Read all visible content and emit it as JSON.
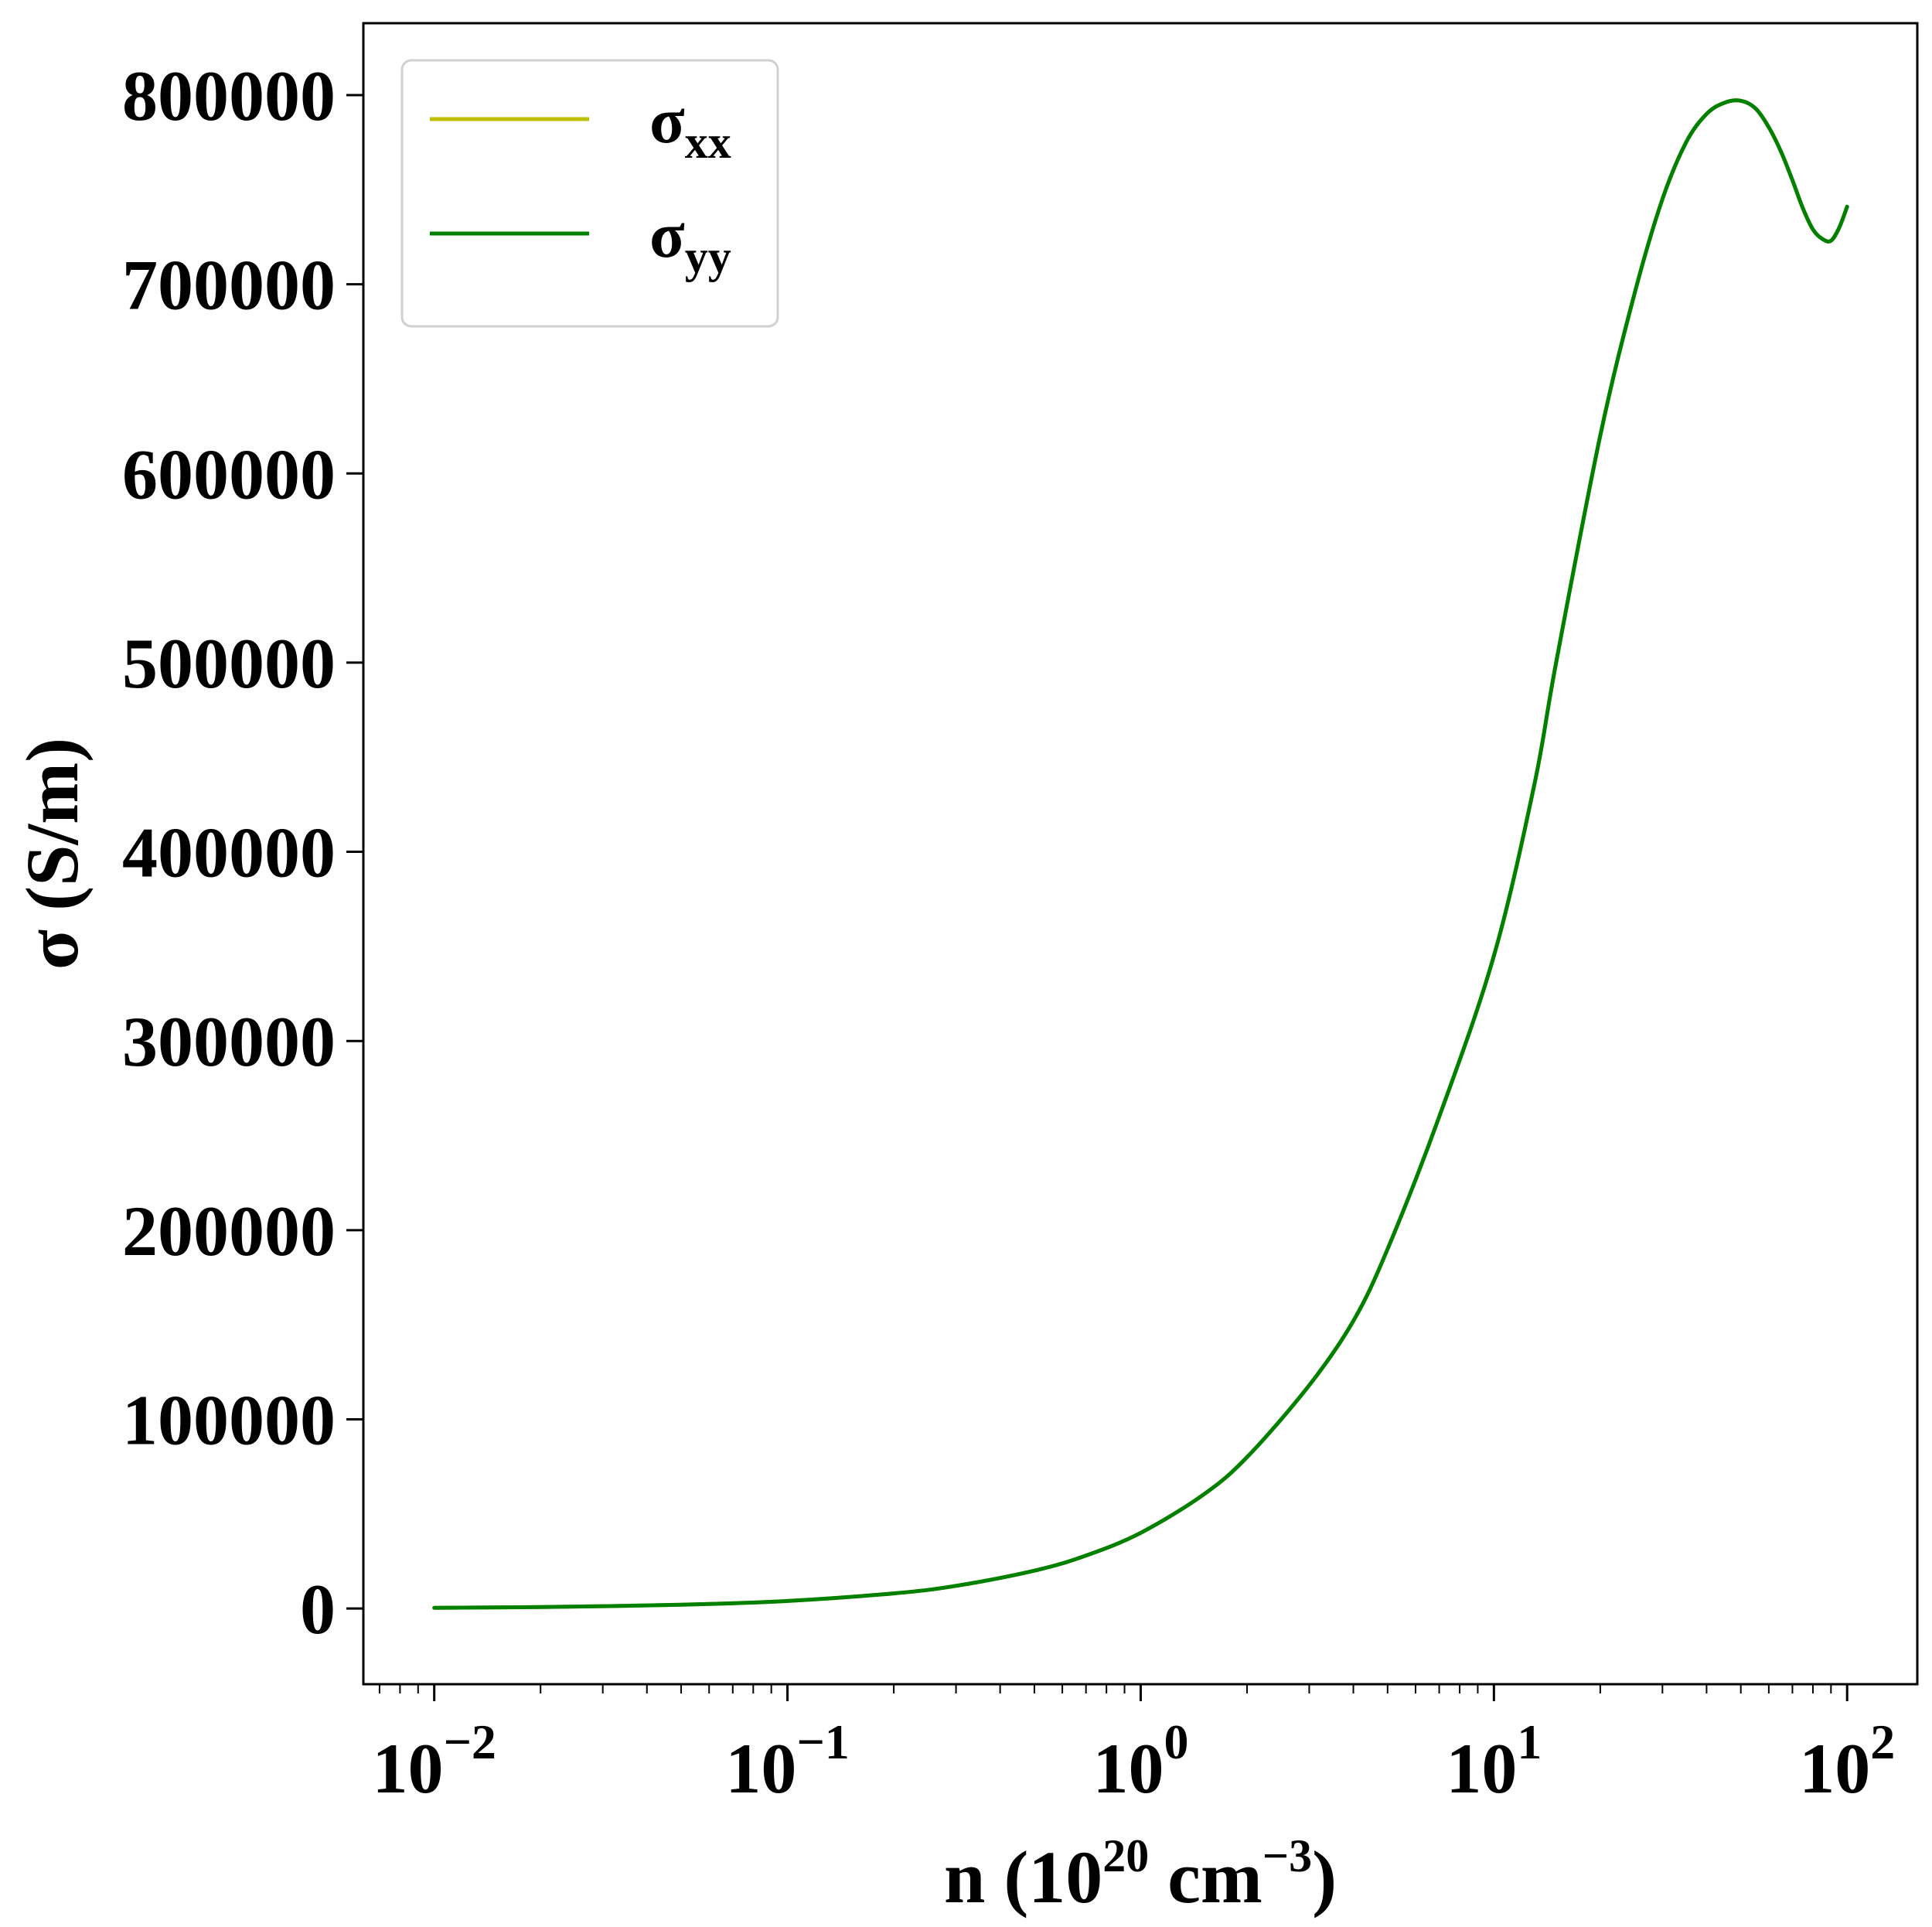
{
  "chart_data": {
    "type": "line",
    "title": "",
    "xlabel": {
      "prefix": "n (10",
      "sup1": "20",
      "mid": " cm",
      "sup2": "−3",
      "suffix": ")"
    },
    "ylabel": "σ (S/m)",
    "x_scale": "log",
    "xlim": [
      0.0063,
      158
    ],
    "ylim": [
      -40000,
      838000
    ],
    "x_ticks": [
      {
        "value": 0.01,
        "base": "10",
        "exp": "−2"
      },
      {
        "value": 0.1,
        "base": "10",
        "exp": "−1"
      },
      {
        "value": 1,
        "base": "10",
        "exp": "0"
      },
      {
        "value": 10,
        "base": "10",
        "exp": "1"
      },
      {
        "value": 100,
        "base": "10",
        "exp": "2"
      }
    ],
    "y_ticks": [
      0,
      100000,
      200000,
      300000,
      400000,
      500000,
      600000,
      700000,
      800000
    ],
    "grid": false,
    "legend": {
      "placement": "top-left",
      "entries": [
        {
          "base": "σ",
          "sub": "xx",
          "color": "#bfbf00"
        },
        {
          "base": "σ",
          "sub": "yy",
          "color": "#008000"
        }
      ]
    },
    "series": [
      {
        "name": "σxx",
        "color": "#bfbf00",
        "x": [
          0.01,
          0.02,
          0.05,
          0.1,
          0.2,
          0.3,
          0.5,
          0.7,
          1,
          1.5,
          2,
          3,
          4,
          5,
          7,
          10,
          13,
          15,
          20,
          25,
          30,
          35,
          40,
          45,
          50,
          55,
          60,
          65,
          70,
          75,
          80,
          85,
          90,
          95,
          100
        ],
        "y": [
          400,
          800,
          2000,
          4000,
          8000,
          12000,
          20000,
          28000,
          40000,
          60000,
          80000,
          118000,
          152000,
          190000,
          260000,
          345000,
          435000,
          500000,
          620000,
          695000,
          745000,
          775000,
          790000,
          796000,
          797000,
          793000,
          783000,
          770000,
          755000,
          740000,
          729000,
          724000,
          723000,
          730000,
          741000
        ]
      },
      {
        "name": "σyy",
        "color": "#008000",
        "x": [
          0.01,
          0.02,
          0.05,
          0.1,
          0.2,
          0.3,
          0.5,
          0.7,
          1,
          1.5,
          2,
          3,
          4,
          5,
          7,
          10,
          13,
          15,
          20,
          25,
          30,
          35,
          40,
          45,
          50,
          55,
          60,
          65,
          70,
          75,
          80,
          85,
          90,
          95,
          100
        ],
        "y": [
          400,
          800,
          2000,
          4000,
          8000,
          12000,
          20000,
          28000,
          40000,
          60000,
          80000,
          118000,
          152000,
          190000,
          260000,
          345000,
          435000,
          500000,
          620000,
          695000,
          745000,
          775000,
          790000,
          796000,
          797000,
          793000,
          783000,
          770000,
          755000,
          740000,
          729000,
          724000,
          723000,
          730000,
          741000
        ]
      }
    ]
  }
}
